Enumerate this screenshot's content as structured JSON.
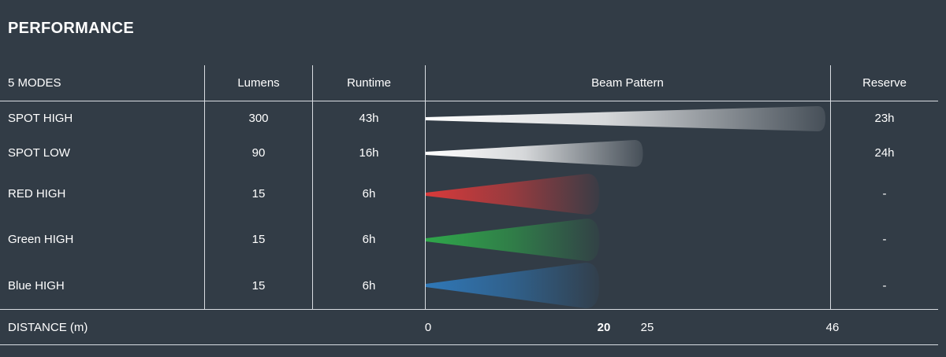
{
  "section_title": "PERFORMANCE",
  "columns": {
    "modes": "5 MODES",
    "lumens": "Lumens",
    "runtime": "Runtime",
    "beam": "Beam Pattern",
    "reserve": "Reserve"
  },
  "rows": [
    {
      "mode": "SPOT HIGH",
      "lumens": "300",
      "runtime": "43h",
      "reserve": "23h"
    },
    {
      "mode": "SPOT LOW",
      "lumens": "90",
      "runtime": "16h",
      "reserve": "24h"
    },
    {
      "mode": "RED HIGH",
      "lumens": "15",
      "runtime": "6h",
      "reserve": "-"
    },
    {
      "mode": "Green HIGH",
      "lumens": "15",
      "runtime": "6h",
      "reserve": "-"
    },
    {
      "mode": "Blue HIGH",
      "lumens": "15",
      "runtime": "6h",
      "reserve": "-"
    }
  ],
  "distance": {
    "label": "DISTANCE (m)",
    "ticks": [
      "0",
      "20",
      "25",
      "46"
    ]
  },
  "chart_data": {
    "type": "bar",
    "title": "Beam Pattern",
    "xlabel": "DISTANCE (m)",
    "categories": [
      "SPOT HIGH",
      "SPOT LOW",
      "RED HIGH",
      "Green HIGH",
      "Blue HIGH"
    ],
    "values": [
      46,
      25,
      20,
      20,
      20
    ],
    "colors": [
      "#ffffff",
      "#ffffff",
      "#d93a3a",
      "#2fa84a",
      "#2f78b8"
    ],
    "xlim": [
      0,
      46
    ],
    "ticks": [
      0,
      20,
      25,
      46
    ]
  }
}
